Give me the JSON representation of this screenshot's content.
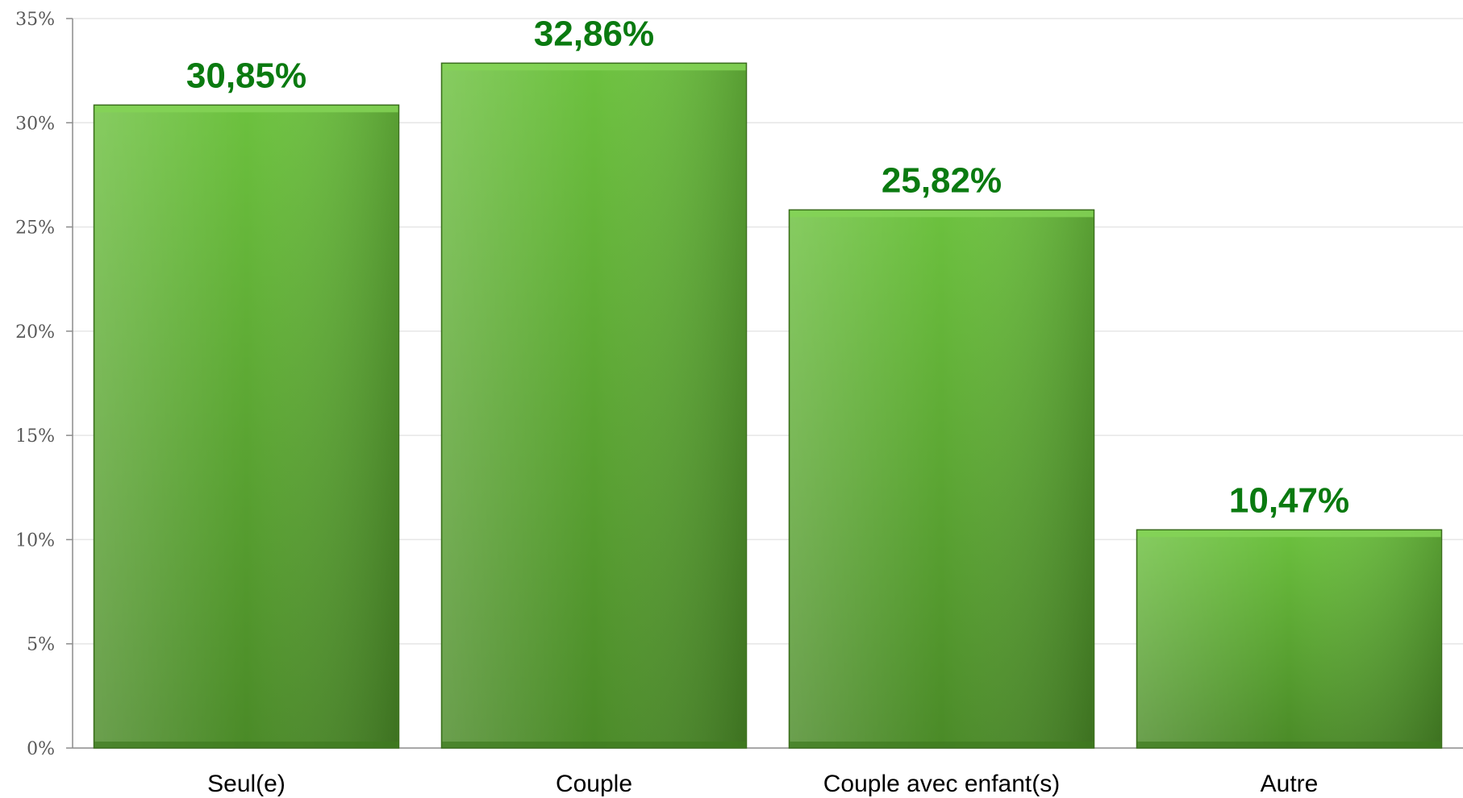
{
  "chart_data": {
    "type": "bar",
    "categories": [
      "Seul(e)",
      "Couple",
      "Couple avec enfant(s)",
      "Autre"
    ],
    "values": [
      30.85,
      32.86,
      25.82,
      10.47
    ],
    "data_labels": [
      "30,85%",
      "32,86%",
      "25,82%",
      "10,47%"
    ],
    "ylim": [
      0,
      35
    ],
    "yticks": [
      0,
      5,
      10,
      15,
      20,
      25,
      30,
      35
    ],
    "ytick_labels": [
      "0%",
      "5%",
      "10%",
      "15%",
      "20%",
      "25%",
      "30%",
      "35%"
    ],
    "grid": true,
    "legend": "none",
    "title": "",
    "xlabel": "",
    "ylabel": ""
  },
  "colors": {
    "bar_light": "#6cc13e",
    "bar_dark": "#3f7a20",
    "bar_top": "#84d456",
    "bar_edge": "#3b6e1e",
    "data_label": "#0a7a10",
    "grid": "#e6e6e6",
    "axis": "#8c8c8c"
  }
}
